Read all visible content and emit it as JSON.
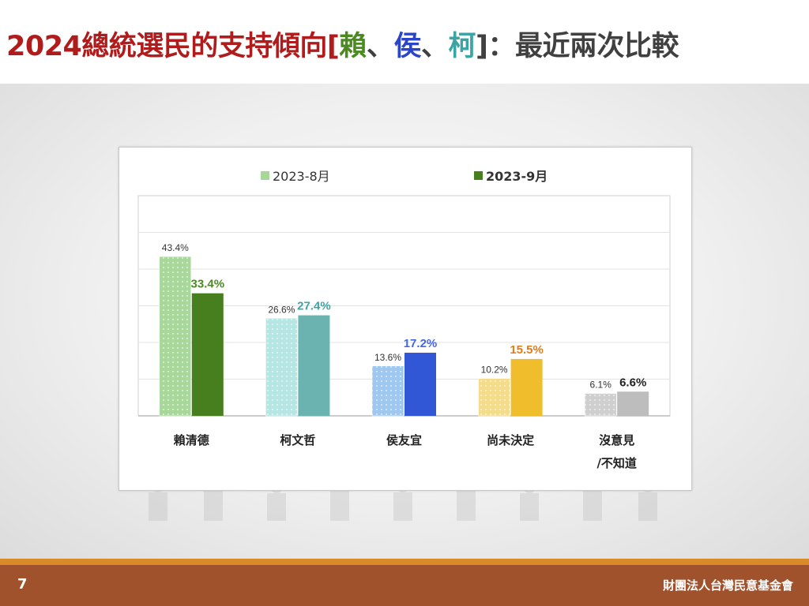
{
  "slide": {
    "title_prefix": "2024總統選民的支持傾向[",
    "title_lai": "賴",
    "sep1": "、",
    "title_hou": "侯",
    "sep2": "、",
    "title_ko": "柯",
    "title_suffix": "]：最近兩次比較",
    "page_number": "7",
    "organization": "財團法人台灣民意基金會"
  },
  "colors": {
    "title_red": "#b01c1c",
    "title_lai": "#4a8a1e",
    "title_hou": "#2a45c8",
    "title_ko": "#3aa5a5"
  },
  "chart_data": {
    "type": "bar",
    "categories": [
      "賴清德",
      "柯文哲",
      "侯友宜",
      "尚未決定",
      "沒意見\n/不知道"
    ],
    "series": [
      {
        "name": "2023-8月",
        "values": [
          43.4,
          26.6,
          13.6,
          10.2,
          6.1
        ],
        "colors": [
          "#a7d89a",
          "#b5e6e3",
          "#9fc8f0",
          "#f5dc8a",
          "#cfcfcf"
        ],
        "legend_color": "#a7d89a"
      },
      {
        "name": "2023-9月",
        "values": [
          33.4,
          27.4,
          17.2,
          15.5,
          6.6
        ],
        "colors": [
          "#477f1f",
          "#6bb3b1",
          "#3157d6",
          "#f0be2c",
          "#bdbdbd"
        ],
        "label_colors": [
          "#4a8a1e",
          "#3aa5a5",
          "#4466e0",
          "#e07d1e",
          "#222222"
        ],
        "legend_color": "#477f1f"
      }
    ],
    "labels_series1": [
      "43.4%",
      "26.6%",
      "13.6%",
      "10.2%",
      "6.1%"
    ],
    "labels_series2": [
      "33.4%",
      "27.4%",
      "17.2%",
      "15.5%",
      "6.6%"
    ],
    "ylim": [
      0,
      60
    ],
    "grid": true,
    "legend_position": "top"
  }
}
